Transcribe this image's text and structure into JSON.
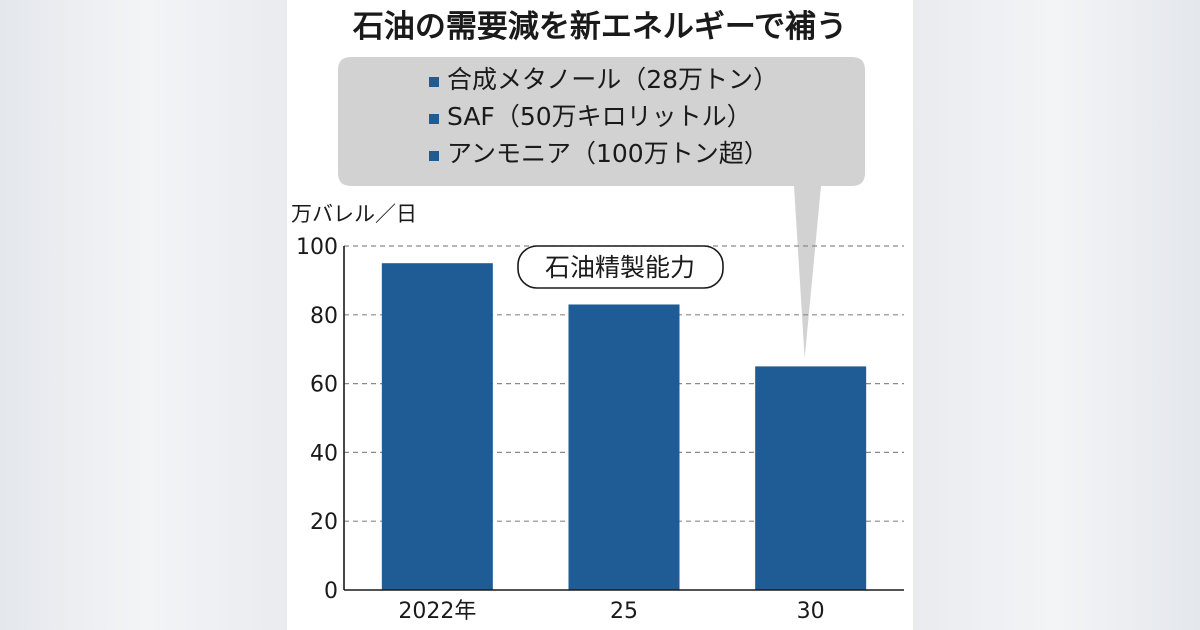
{
  "chart_data": {
    "type": "bar",
    "title": "石油の需要減を新エネルギーで補う",
    "ylabel": "万バレル／日",
    "xlabel": "",
    "categories": [
      "2022年",
      "25",
      "30"
    ],
    "series": [
      {
        "name": "石油精製能力",
        "values": [
          95,
          83,
          65
        ]
      }
    ],
    "ylim": [
      0,
      100
    ],
    "yticks": [
      0,
      20,
      40,
      60,
      80,
      100
    ],
    "grid": true,
    "callout": {
      "target_category": "30",
      "items": [
        "合成メタノール（28万トン）",
        "SAF（50万キロリットル）",
        "アンモニア（100万トン超）"
      ]
    }
  },
  "colors": {
    "bar": "#1f5b94",
    "callout_bg": "#d2d2d2",
    "grid": "#8a8a8a",
    "text": "#1a1a1a"
  }
}
